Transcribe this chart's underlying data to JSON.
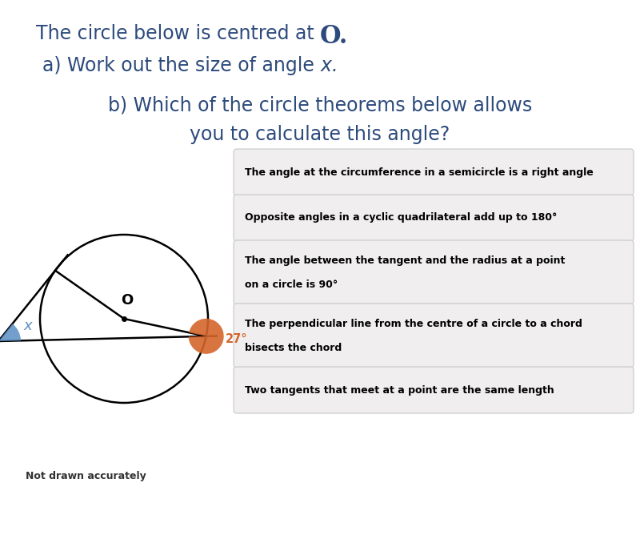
{
  "title_color": "#2c4a7c",
  "bg_color": "#ffffff",
  "angle_27_color": "#d4652a",
  "angle_x_color": "#5b8ec4",
  "options": [
    "The angle at the circumference in a semicircle is a right angle",
    "Opposite angles in a cyclic quadrilateral add up to 180°",
    "The angle between the tangent and the radius at a point\non a circle is 90°",
    "The perpendicular line from the centre of a circle to a chord\nbisects the chord",
    "Two tangents that meet at a point are the same length"
  ],
  "option_bg": "#f0eeee",
  "option_border": "#c8c8c8",
  "note_text": "Not drawn accurately",
  "note_color": "#333333",
  "note_fontsize": 9
}
